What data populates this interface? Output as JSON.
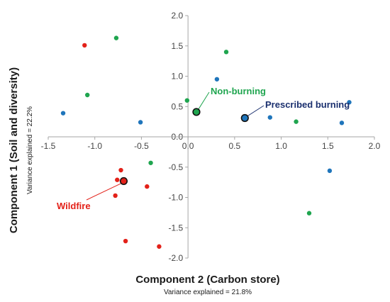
{
  "chart_data": {
    "type": "scatter",
    "xlabel": "Component 2 (Carbon store)",
    "xlabel_sub": "Variance explained = 21.8%",
    "ylabel": "Component 1 (Soil and diversity)",
    "ylabel_sub": "Variance explained = 22.2%",
    "xlim": [
      -1.5,
      2.0
    ],
    "ylim": [
      -2.0,
      2.0
    ],
    "x_ticks": [
      "-1.5",
      "-1.0",
      "-0.5",
      "0.0",
      "0.5",
      "1.0",
      "1.5",
      "2.0"
    ],
    "y_ticks": [
      "2.0",
      "1.5",
      "1.0",
      "0.5",
      "0.0",
      "-0.5",
      "-1.0",
      "-1.5",
      "-2.0"
    ],
    "grid": false,
    "series": [
      {
        "name": "Wildfire",
        "color": "#e32119",
        "points": [
          {
            "x": -1.11,
            "y": 1.51
          },
          {
            "x": -0.72,
            "y": -0.55
          },
          {
            "x": -0.76,
            "y": -0.71
          },
          {
            "x": -0.78,
            "y": -0.97
          },
          {
            "x": -0.44,
            "y": -0.82
          },
          {
            "x": -0.67,
            "y": -1.72
          },
          {
            "x": -0.31,
            "y": -1.81
          }
        ],
        "centroid": {
          "x": -0.69,
          "y": -0.73
        }
      },
      {
        "name": "Non-burning",
        "color": "#1fa54f",
        "points": [
          {
            "x": -0.77,
            "y": 1.63
          },
          {
            "x": -1.08,
            "y": 0.69
          },
          {
            "x": 0.41,
            "y": 1.4
          },
          {
            "x": -0.01,
            "y": 0.6
          },
          {
            "x": 1.16,
            "y": 0.25
          },
          {
            "x": -0.4,
            "y": -0.43
          },
          {
            "x": 1.3,
            "y": -1.26
          }
        ],
        "centroid": {
          "x": 0.09,
          "y": 0.41
        }
      },
      {
        "name": "Prescribed burning",
        "color": "#1f75bb",
        "points": [
          {
            "x": -1.34,
            "y": 0.39
          },
          {
            "x": -0.51,
            "y": 0.24
          },
          {
            "x": 0.31,
            "y": 0.95
          },
          {
            "x": 0.88,
            "y": 0.32
          },
          {
            "x": 1.73,
            "y": 0.57
          },
          {
            "x": 1.65,
            "y": 0.23
          },
          {
            "x": 1.52,
            "y": -0.56
          }
        ],
        "centroid": {
          "x": 0.61,
          "y": 0.31
        }
      }
    ],
    "annotations": [
      {
        "text": "Wildfire",
        "color": "#e32119"
      },
      {
        "text": "Non-burning",
        "color": "#1fa54f"
      },
      {
        "text": "Prescribed burning",
        "color": "#1a2f6e"
      }
    ]
  }
}
